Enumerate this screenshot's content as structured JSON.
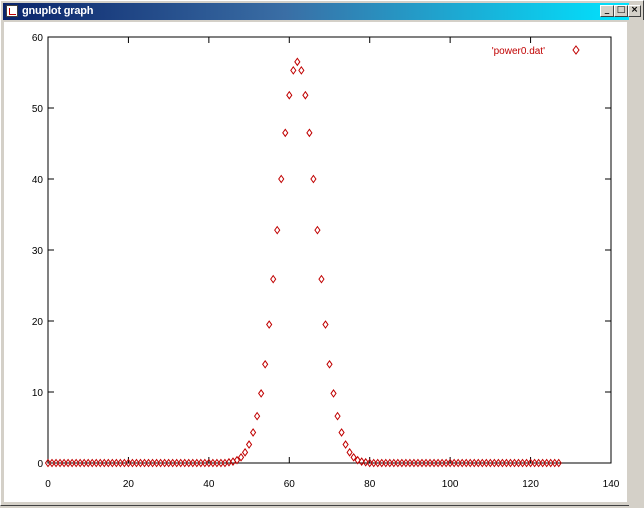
{
  "window": {
    "title": "gnuplot graph",
    "minimize_glyph": "_",
    "maximize_glyph": "□",
    "close_glyph": "×"
  },
  "chart_data": {
    "type": "scatter",
    "title": "",
    "xlabel": "",
    "ylabel": "",
    "xlim": [
      0,
      140
    ],
    "ylim": [
      0,
      60
    ],
    "x_ticks": [
      "0",
      "20",
      "40",
      "60",
      "80",
      "100",
      "120",
      "140"
    ],
    "y_ticks": [
      "0",
      "10",
      "20",
      "30",
      "40",
      "50",
      "60"
    ],
    "grid": false,
    "legend_position": "top-right",
    "marker": "diamond",
    "color": "#c00000",
    "series": [
      {
        "name": "'power0.dat'",
        "x": [
          0,
          1,
          2,
          3,
          4,
          5,
          6,
          7,
          8,
          9,
          10,
          11,
          12,
          13,
          14,
          15,
          16,
          17,
          18,
          19,
          20,
          21,
          22,
          23,
          24,
          25,
          26,
          27,
          28,
          29,
          30,
          31,
          32,
          33,
          34,
          35,
          36,
          37,
          38,
          39,
          40,
          41,
          42,
          43,
          44,
          45,
          46,
          47,
          48,
          49,
          50,
          51,
          52,
          53,
          54,
          55,
          56,
          57,
          58,
          59,
          60,
          61,
          62,
          63,
          64,
          65,
          66,
          67,
          68,
          69,
          70,
          71,
          72,
          73,
          74,
          75,
          76,
          77,
          78,
          79,
          80,
          81,
          82,
          83,
          84,
          85,
          86,
          87,
          88,
          89,
          90,
          91,
          92,
          93,
          94,
          95,
          96,
          97,
          98,
          99,
          100,
          101,
          102,
          103,
          104,
          105,
          106,
          107,
          108,
          109,
          110,
          111,
          112,
          113,
          114,
          115,
          116,
          117,
          118,
          119,
          120,
          121,
          122,
          123,
          124,
          125,
          126,
          127
        ],
        "y": [
          0,
          0,
          0,
          0,
          0,
          0,
          0,
          0,
          0,
          0,
          0,
          0,
          0,
          0,
          0,
          0,
          0,
          0,
          0,
          0,
          0,
          0,
          0,
          0,
          0,
          0,
          0,
          0,
          0,
          0,
          0,
          0,
          0,
          0,
          0,
          0,
          0,
          0,
          0,
          0,
          0,
          0,
          0,
          0,
          0,
          0.1,
          0.2,
          0.4,
          0.8,
          1.5,
          2.6,
          4.3,
          6.6,
          9.8,
          13.9,
          19.5,
          25.9,
          32.8,
          40,
          46.5,
          51.8,
          55.3,
          56.5,
          55.3,
          51.8,
          46.5,
          40,
          32.8,
          25.9,
          19.5,
          13.9,
          9.8,
          6.6,
          4.3,
          2.6,
          1.5,
          0.8,
          0.4,
          0.2,
          0.1,
          0,
          0,
          0,
          0,
          0,
          0,
          0,
          0,
          0,
          0,
          0,
          0,
          0,
          0,
          0,
          0,
          0,
          0,
          0,
          0,
          0,
          0,
          0,
          0,
          0,
          0,
          0,
          0,
          0,
          0,
          0,
          0,
          0,
          0,
          0,
          0,
          0,
          0,
          0,
          0,
          0,
          0,
          0,
          0,
          0,
          0,
          0,
          0
        ]
      }
    ]
  }
}
